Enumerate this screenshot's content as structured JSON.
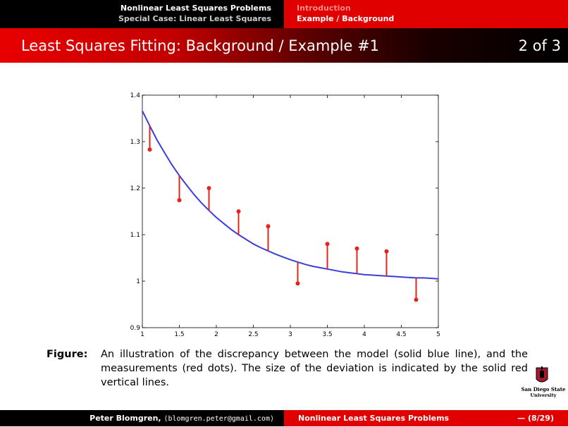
{
  "nav": {
    "left": [
      "Nonlinear Least Squares Problems",
      "Special Case: Linear Least Squares"
    ],
    "right": [
      "Introduction",
      "Example / Background"
    ]
  },
  "title": "Least Squares Fitting: Background / Example #1",
  "slide_counter": "2 of 3",
  "chart_data": {
    "type": "scatter",
    "xlim": [
      1,
      5
    ],
    "ylim": [
      0.9,
      1.4
    ],
    "x_ticks": [
      "1",
      "1.5",
      "2",
      "2.5",
      "3",
      "3.5",
      "4",
      "4.5",
      "5"
    ],
    "y_ticks": [
      "0.9",
      "1",
      "1.1",
      "1.2",
      "1.3",
      "1.4"
    ],
    "measurements": {
      "x": [
        1.1,
        1.5,
        1.9,
        2.3,
        2.7,
        3.1,
        3.5,
        3.9,
        4.3,
        4.7
      ],
      "y": [
        1.283,
        1.174,
        1.2,
        1.15,
        1.118,
        0.995,
        1.08,
        1.07,
        1.064,
        0.96
      ]
    },
    "model": {
      "x": [
        1.0,
        1.1,
        1.2,
        1.3,
        1.4,
        1.5,
        1.6,
        1.7,
        1.8,
        1.9,
        2.0,
        2.1,
        2.2,
        2.3,
        2.4,
        2.5,
        2.6,
        2.7,
        2.8,
        2.9,
        3.0,
        3.1,
        3.2,
        3.3,
        3.4,
        3.5,
        3.6,
        3.7,
        3.8,
        3.9,
        4.0,
        4.1,
        4.2,
        4.3,
        4.4,
        4.5,
        4.6,
        4.7,
        4.8,
        4.9,
        5.0
      ],
      "y": [
        1.366,
        1.334,
        1.303,
        1.276,
        1.25,
        1.227,
        1.206,
        1.186,
        1.168,
        1.152,
        1.137,
        1.124,
        1.111,
        1.1,
        1.09,
        1.08,
        1.072,
        1.065,
        1.058,
        1.052,
        1.046,
        1.041,
        1.036,
        1.032,
        1.029,
        1.026,
        1.023,
        1.02,
        1.018,
        1.016,
        1.014,
        1.013,
        1.012,
        1.011,
        1.01,
        1.009,
        1.008,
        1.007,
        1.007,
        1.006,
        1.005
      ]
    },
    "colors": {
      "model": "#3a3fdb",
      "measurements": "#e3241b",
      "deviation": "#e3241b"
    }
  },
  "caption": {
    "label": "Figure:",
    "text": "An illustration of the discrepancy between the model (solid blue line), and the measurements (red dots). The size of the deviation is indicated by the solid red vertical lines."
  },
  "logo": {
    "line1": "San Diego State",
    "line2": "University"
  },
  "footer": {
    "author": "Peter Blomgren,",
    "email": "⟨blomgren.peter@gmail.com⟩",
    "title": "Nonlinear Least Squares Problems",
    "page": "— (8/29)"
  }
}
